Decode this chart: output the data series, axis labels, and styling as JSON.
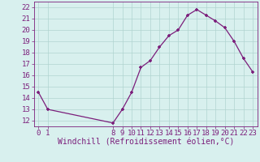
{
  "x": [
    0,
    1,
    8,
    9,
    10,
    11,
    12,
    13,
    14,
    15,
    16,
    17,
    18,
    19,
    20,
    21,
    22,
    23
  ],
  "y": [
    14.5,
    13.0,
    11.8,
    13.0,
    14.5,
    16.7,
    17.3,
    18.5,
    19.5,
    20.0,
    21.3,
    21.8,
    21.3,
    20.8,
    20.2,
    19.0,
    17.5,
    16.3
  ],
  "line_color": "#7B1E7B",
  "marker": "+",
  "bg_color": "#d8f0ee",
  "grid_color": "#b0d4d0",
  "xlabel": "Windchill (Refroidissement éolien,°C)",
  "xlim": [
    -0.5,
    23.5
  ],
  "ylim": [
    11.5,
    22.5
  ],
  "yticks": [
    12,
    13,
    14,
    15,
    16,
    17,
    18,
    19,
    20,
    21,
    22
  ],
  "xticks": [
    0,
    1,
    8,
    9,
    10,
    11,
    12,
    13,
    14,
    15,
    16,
    17,
    18,
    19,
    20,
    21,
    22,
    23
  ],
  "tick_color": "#7B1E7B",
  "label_color": "#7B1E7B",
  "font_size": 6.5,
  "label_font_size": 7.0
}
